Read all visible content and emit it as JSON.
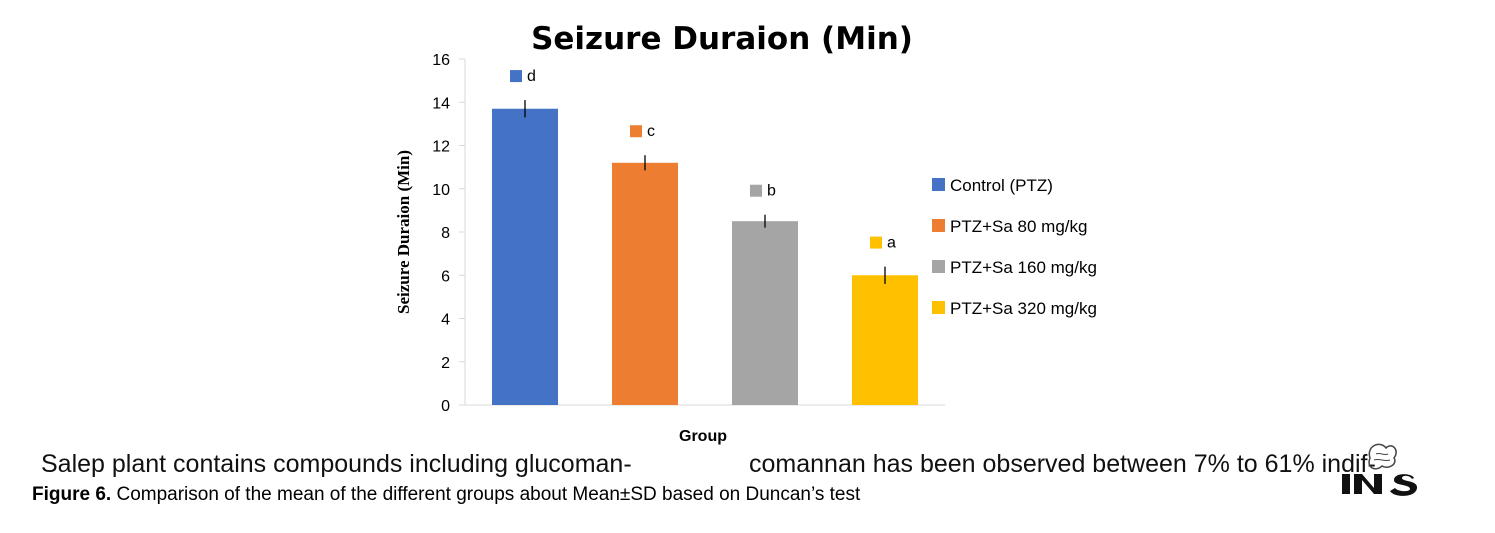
{
  "chart_data": {
    "type": "bar",
    "title": "Seizure Duraion (Min)",
    "xlabel": "Group",
    "ylabel": "Seizure Duraion (Min)",
    "ylim": [
      0,
      16
    ],
    "yticks": [
      0,
      2,
      4,
      6,
      8,
      10,
      12,
      14,
      16
    ],
    "categories": [
      "Control (PTZ)",
      "PTZ+Sa 80 mg/kg",
      "PTZ+Sa 160 mg/kg",
      "PTZ+Sa 320 mg/kg"
    ],
    "values": [
      13.7,
      11.2,
      8.5,
      6.0
    ],
    "errors": [
      0.4,
      0.35,
      0.3,
      0.4
    ],
    "significance_labels": [
      "d",
      "c",
      "b",
      "a"
    ],
    "colors": [
      "#4472c4",
      "#ed7d31",
      "#a5a5a5",
      "#ffc000"
    ],
    "legend_position": "right",
    "grid": false
  },
  "body_text": {
    "left": "Salep plant contains compounds including glucoman-",
    "right": "comannan has been observed between 7% to 61% indif-"
  },
  "caption": {
    "label": "Figure 6.",
    "text": " Comparison of the mean of the different groups about Mean±SD based on Duncan’s test"
  }
}
